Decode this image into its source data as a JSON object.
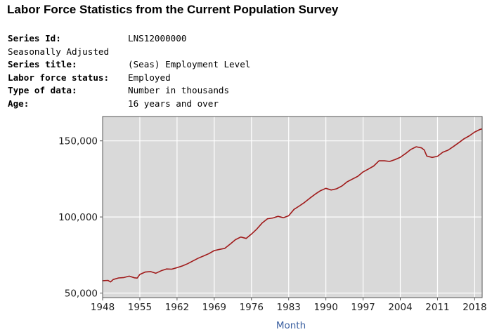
{
  "page_title": "Labor Force Statistics from the Current Population Survey",
  "meta": {
    "series_id_label": "Series Id:",
    "series_id": "LNS12000000",
    "seasonal": "Seasonally Adjusted",
    "series_title_label": "Series title:",
    "series_title": "(Seas) Employment Level",
    "lf_status_label": "Labor force status:",
    "lf_status": "Employed",
    "type_label": "Type of data:",
    "type": "Number in thousands",
    "age_label": "Age:",
    "age": "16 years and over"
  },
  "chart_data": {
    "type": "line",
    "xlabel": "Month",
    "ylabel": "",
    "xlim": [
      1948,
      2019.4
    ],
    "ylim": [
      47000,
      166000
    ],
    "x_ticks": [
      1948,
      1955,
      1962,
      1969,
      1976,
      1983,
      1990,
      1997,
      2004,
      2011,
      2018
    ],
    "x_tick_labels": [
      "1948",
      "1955",
      "1962",
      "1969",
      "1976",
      "1983",
      "1990",
      "1997",
      "2004",
      "2011",
      "2018"
    ],
    "y_ticks": [
      50000,
      100000,
      150000
    ],
    "y_tick_labels": [
      "50,000",
      "100,000",
      "150,000"
    ],
    "grid": true,
    "colors": {
      "line": "#a01a1a",
      "plot_bg": "#d9d9d9",
      "grid": "#ffffff"
    },
    "series": [
      {
        "x": [
          1948,
          1949,
          1949.5,
          1950,
          1951,
          1952,
          1953,
          1954,
          1954.5,
          1955,
          1956,
          1957,
          1958,
          1959,
          1960,
          1961,
          1962,
          1963,
          1964,
          1965,
          1966,
          1967,
          1968,
          1969,
          1970,
          1971,
          1972,
          1973,
          1974,
          1975,
          1976,
          1977,
          1978,
          1979,
          1980,
          1981,
          1982,
          1983,
          1984,
          1985,
          1986,
          1987,
          1988,
          1989,
          1990,
          1991,
          1992,
          1993,
          1994,
          1995,
          1996,
          1997,
          1998,
          1999,
          2000,
          2001,
          2002,
          2003,
          2004,
          2005,
          2006,
          2007,
          2008,
          2008.5,
          2009,
          2010,
          2011,
          2012,
          2013,
          2014,
          2015,
          2016,
          2017,
          2018,
          2019,
          2019.3
        ],
        "y": [
          58100,
          58300,
          57300,
          58900,
          59900,
          60200,
          61100,
          60000,
          59800,
          62200,
          63800,
          64100,
          63000,
          64600,
          65800,
          65700,
          66700,
          67800,
          69300,
          71100,
          72900,
          74400,
          75900,
          77900,
          78700,
          79400,
          82200,
          85100,
          86800,
          85900,
          88800,
          92000,
          96000,
          98800,
          99300,
          100400,
          99500,
          100800,
          105000,
          107200,
          109600,
          112400,
          115000,
          117300,
          118800,
          117700,
          118500,
          120300,
          123100,
          124900,
          126700,
          129600,
          131500,
          133500,
          136900,
          136900,
          136500,
          137700,
          139200,
          141700,
          144400,
          146100,
          145400,
          144000,
          140000,
          139100,
          139900,
          142500,
          143900,
          146300,
          148800,
          151400,
          153300,
          155800,
          157500,
          157800
        ]
      }
    ]
  }
}
